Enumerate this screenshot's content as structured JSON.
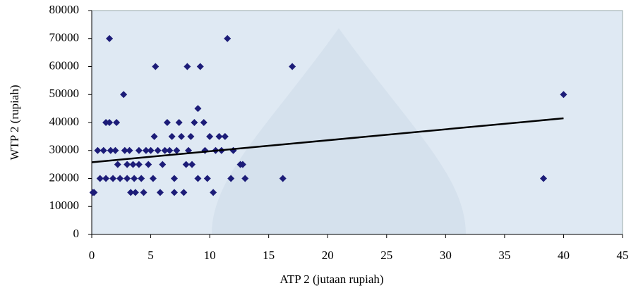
{
  "chart_data": {
    "type": "scatter",
    "x_label": "ATP 2 (jutaan rupiah)",
    "y_label": "WTP 2 (rupiah)",
    "xlim": [
      0,
      45
    ],
    "xticks": [
      0,
      5,
      10,
      15,
      20,
      25,
      30,
      35,
      40,
      45
    ],
    "ylim": [
      0,
      80000
    ],
    "yticks": [
      0,
      10000,
      20000,
      30000,
      40000,
      50000,
      60000,
      70000,
      80000
    ],
    "series": [
      {
        "color": "#1c1c78",
        "x": [
          0.1,
          0.2,
          0.5,
          0.7,
          1,
          1.2,
          1.2,
          1.5,
          1.5,
          1.6,
          1.8,
          2,
          2.1,
          2.2,
          2.4,
          2.7,
          2.8,
          3,
          3,
          3.2,
          3.3,
          3.5,
          3.6,
          3.7,
          4,
          4,
          4.2,
          4.4,
          4.6,
          4.8,
          5,
          5.2,
          5.3,
          5.4,
          5.6,
          5.8,
          6,
          6.2,
          6.4,
          6.6,
          6.8,
          7,
          7,
          7.2,
          7.4,
          7.6,
          7.8,
          8,
          8.1,
          8.2,
          8.4,
          8.5,
          8.7,
          9,
          9,
          9.2,
          9.5,
          9.6,
          9.8,
          10,
          10.3,
          10.5,
          10.8,
          11,
          11.3,
          11.5,
          11.8,
          12,
          12.6,
          12.8,
          13,
          16.2,
          17,
          38.3,
          40
        ],
        "values": [
          15000,
          15000,
          30000,
          20000,
          30000,
          40000,
          20000,
          70000,
          40000,
          30000,
          20000,
          30000,
          40000,
          25000,
          20000,
          50000,
          30000,
          20000,
          25000,
          30000,
          15000,
          25000,
          20000,
          15000,
          30000,
          25000,
          20000,
          15000,
          30000,
          25000,
          30000,
          20000,
          35000,
          60000,
          30000,
          15000,
          25000,
          30000,
          40000,
          30000,
          35000,
          20000,
          15000,
          30000,
          40000,
          35000,
          15000,
          25000,
          60000,
          30000,
          35000,
          25000,
          40000,
          45000,
          20000,
          60000,
          40000,
          30000,
          20000,
          35000,
          15000,
          30000,
          35000,
          30000,
          35000,
          70000,
          20000,
          30000,
          25000,
          25000,
          20000,
          20000,
          60000,
          20000,
          50000
        ]
      }
    ],
    "trendline": {
      "color": "#000000",
      "x": [
        0,
        40
      ],
      "values": [
        25800,
        41500
      ]
    }
  }
}
